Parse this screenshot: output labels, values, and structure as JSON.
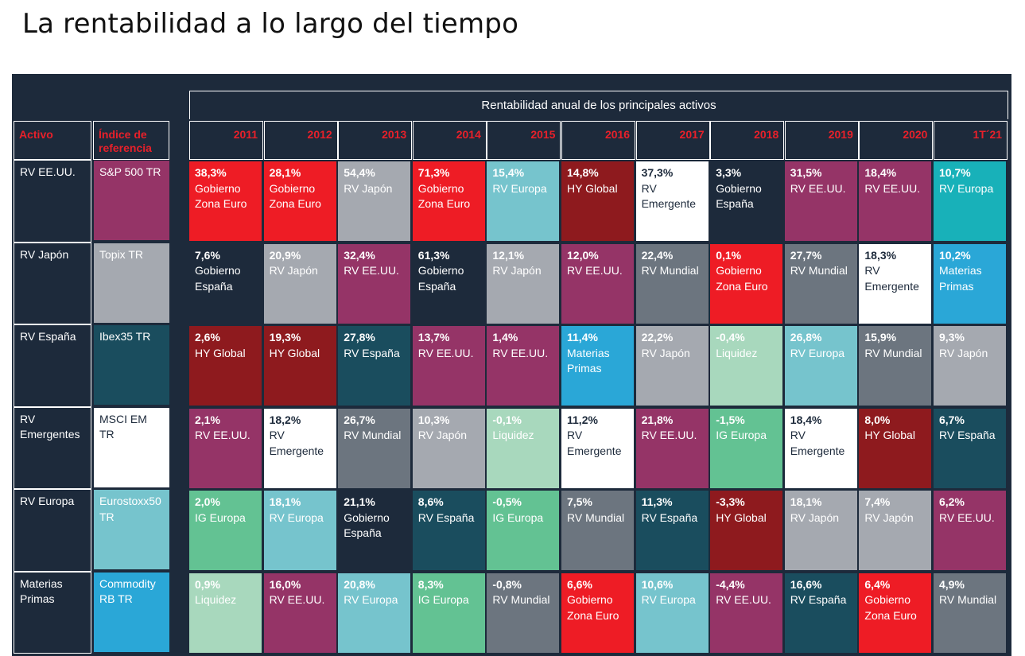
{
  "title": "La rentabilidad a lo largo del tiempo",
  "chart_data": {
    "type": "table",
    "header": "Rentabilidad anual de los principales activos",
    "col_activo": "Activo",
    "col_indice": "Índice de referencia",
    "years": [
      "2011",
      "2012",
      "2013",
      "2014",
      "2015",
      "2016",
      "2017",
      "2018",
      "2019",
      "2020",
      "1T´21"
    ],
    "assets": [
      {
        "name": "RV EE.UU.",
        "index": "S&P 500 TR",
        "color": "rv_eeuu"
      },
      {
        "name": "RV Japón",
        "index": "Topix TR",
        "color": "rv_japon"
      },
      {
        "name": "RV España",
        "index": "Ibex35 TR",
        "color": "rv_espana"
      },
      {
        "name": "RV Emergentes",
        "index": "MSCI EM TR",
        "color": "rv_emergente"
      },
      {
        "name": "RV Europa",
        "index": "Eurostoxx50 TR",
        "color": "rv_europa"
      },
      {
        "name": "Materias Primas",
        "index": "Commodity RB TR",
        "color": "materias"
      }
    ],
    "grid": [
      [
        {
          "pct": "38,3%",
          "name": "Gobierno Zona Euro",
          "color": "gob_zona"
        },
        {
          "pct": "28,1%",
          "name": "Gobierno Zona Euro",
          "color": "gob_zona"
        },
        {
          "pct": "54,4%",
          "name": "RV Japón",
          "color": "rv_japon"
        },
        {
          "pct": "71,3%",
          "name": "Gobierno Zona Euro",
          "color": "gob_zona"
        },
        {
          "pct": "15,4%",
          "name": "RV Europa",
          "color": "rv_europa"
        },
        {
          "pct": "14,8%",
          "name": "HY Global",
          "color": "hy"
        },
        {
          "pct": "37,3%",
          "name": "RV Emergente",
          "color": "rv_emergente"
        },
        {
          "pct": "3,3%",
          "name": "Gobierno España",
          "color": "gob_esp"
        },
        {
          "pct": "31,5%",
          "name": "RV EE.UU.",
          "color": "rv_eeuu"
        },
        {
          "pct": "18,4%",
          "name": "RV EE.UU.",
          "color": "rv_eeuu"
        },
        {
          "pct": "10,7%",
          "name": "RV Europa",
          "color": "rv_europa_teal"
        }
      ],
      [
        {
          "pct": "7,6%",
          "name": "Gobierno España",
          "color": "gob_esp"
        },
        {
          "pct": "20,9%",
          "name": "RV Japón",
          "color": "rv_japon"
        },
        {
          "pct": "32,4%",
          "name": "RV EE.UU.",
          "color": "rv_eeuu"
        },
        {
          "pct": "61,3%",
          "name": "Gobierno España",
          "color": "gob_esp"
        },
        {
          "pct": "12,1%",
          "name": "RV Japón",
          "color": "rv_japon"
        },
        {
          "pct": "12,0%",
          "name": "RV EE.UU.",
          "color": "rv_eeuu"
        },
        {
          "pct": "22,4%",
          "name": "RV Mundial",
          "color": "rv_mundial"
        },
        {
          "pct": "0,1%",
          "name": "Gobierno Zona Euro",
          "color": "gob_zona"
        },
        {
          "pct": "27,7%",
          "name": "RV Mundial",
          "color": "rv_mundial"
        },
        {
          "pct": "18,3%",
          "name": "RV Emergente",
          "color": "rv_emergente"
        },
        {
          "pct": "10,2%",
          "name": "Materias Primas",
          "color": "materias"
        }
      ],
      [
        {
          "pct": "2,6%",
          "name": "HY Global",
          "color": "hy"
        },
        {
          "pct": "19,3%",
          "name": "HY Global",
          "color": "hy"
        },
        {
          "pct": "27,8%",
          "name": "RV España",
          "color": "rv_espana"
        },
        {
          "pct": "13,7%",
          "name": "RV EE.UU.",
          "color": "rv_eeuu"
        },
        {
          "pct": "1,4%",
          "name": "RV EE.UU.",
          "color": "rv_eeuu"
        },
        {
          "pct": "11,4%",
          "name": "Materias Primas",
          "color": "materias"
        },
        {
          "pct": "22,2%",
          "name": "RV Japón",
          "color": "rv_japon"
        },
        {
          "pct": "-0,4%",
          "name": "Liquidez",
          "color": "liquidez"
        },
        {
          "pct": "26,8%",
          "name": "RV Europa",
          "color": "rv_europa"
        },
        {
          "pct": "15,9%",
          "name": "RV Mundial",
          "color": "rv_mundial"
        },
        {
          "pct": "9,3%",
          "name": "RV Japón",
          "color": "rv_japon"
        }
      ],
      [
        {
          "pct": "2,1%",
          "name": "RV EE.UU.",
          "color": "rv_eeuu"
        },
        {
          "pct": "18,2%",
          "name": "RV Emergente",
          "color": "rv_emergente"
        },
        {
          "pct": "26,7%",
          "name": "RV Mundial",
          "color": "rv_mundial"
        },
        {
          "pct": "10,3%",
          "name": "RV Japón",
          "color": "rv_japon"
        },
        {
          "pct": "-0,1%",
          "name": "Liquidez",
          "color": "liquidez"
        },
        {
          "pct": "11,2%",
          "name": "RV Emergente",
          "color": "rv_emergente"
        },
        {
          "pct": "21,8%",
          "name": "RV EE.UU.",
          "color": "rv_eeuu"
        },
        {
          "pct": "-1,5%",
          "name": "IG Europa",
          "color": "ig_europa"
        },
        {
          "pct": "18,4%",
          "name": "RV Emergente",
          "color": "rv_emergente"
        },
        {
          "pct": "8,0%",
          "name": "HY Global",
          "color": "hy"
        },
        {
          "pct": "6,7%",
          "name": "RV España",
          "color": "rv_espana"
        }
      ],
      [
        {
          "pct": "2,0%",
          "name": "IG Europa",
          "color": "ig_europa"
        },
        {
          "pct": "18,1%",
          "name": "RV Europa",
          "color": "rv_europa"
        },
        {
          "pct": "21,1%",
          "name": "Gobierno España",
          "color": "gob_esp"
        },
        {
          "pct": "8,6%",
          "name": "RV España",
          "color": "rv_espana"
        },
        {
          "pct": "-0,5%",
          "name": "IG Europa",
          "color": "ig_europa"
        },
        {
          "pct": "7,5%",
          "name": "RV Mundial",
          "color": "rv_mundial"
        },
        {
          "pct": "11,3%",
          "name": "RV España",
          "color": "rv_espana"
        },
        {
          "pct": "-3,3%",
          "name": "HY Global",
          "color": "hy"
        },
        {
          "pct": "18,1%",
          "name": "RV Japón",
          "color": "rv_japon"
        },
        {
          "pct": "7,4%",
          "name": "RV Japón",
          "color": "rv_japon"
        },
        {
          "pct": "6,2%",
          "name": "RV EE.UU.",
          "color": "rv_eeuu"
        }
      ],
      [
        {
          "pct": "0,9%",
          "name": "Liquidez",
          "color": "liquidez"
        },
        {
          "pct": "16,0%",
          "name": "RV EE.UU.",
          "color": "rv_eeuu"
        },
        {
          "pct": "20,8%",
          "name": "RV Europa",
          "color": "rv_europa"
        },
        {
          "pct": "8,3%",
          "name": "IG Europa",
          "color": "ig_europa"
        },
        {
          "pct": "-0,8%",
          "name": "RV Mundial",
          "color": "rv_mundial"
        },
        {
          "pct": "6,6%",
          "name": "Gobierno Zona Euro",
          "color": "gob_zona"
        },
        {
          "pct": "10,6%",
          "name": "RV Europa",
          "color": "rv_europa"
        },
        {
          "pct": "-4,4%",
          "name": "RV EE.UU.",
          "color": "rv_eeuu"
        },
        {
          "pct": "16,6%",
          "name": "RV España",
          "color": "rv_espana"
        },
        {
          "pct": "6,4%",
          "name": "Gobierno Zona Euro",
          "color": "gob_zona"
        },
        {
          "pct": "4,9%",
          "name": "RV Mundial",
          "color": "rv_mundial"
        }
      ]
    ]
  },
  "colors": {
    "gob_zona": {
      "bg": "#ee1c25",
      "fg": "#ffffff"
    },
    "gob_esp": {
      "bg": "#1d2a3b",
      "fg": "#ffffff"
    },
    "rv_japon": {
      "bg": "#a5a9b0",
      "fg": "#ffffff"
    },
    "rv_europa": {
      "bg": "#76c4cd",
      "fg": "#ffffff"
    },
    "rv_europa_teal": {
      "bg": "#18b1b9",
      "fg": "#ffffff"
    },
    "hy": {
      "bg": "#8e1a1e",
      "fg": "#ffffff"
    },
    "rv_emergente": {
      "bg": "#ffffff",
      "fg": "#1d2a3b"
    },
    "rv_eeuu": {
      "bg": "#953467",
      "fg": "#ffffff"
    },
    "rv_mundial": {
      "bg": "#6c757f",
      "fg": "#ffffff"
    },
    "rv_espana": {
      "bg": "#1a4d5e",
      "fg": "#ffffff"
    },
    "materias": {
      "bg": "#2aa7d7",
      "fg": "#ffffff"
    },
    "liquidez": {
      "bg": "#a8d8bd",
      "fg": "#ffffff"
    },
    "ig_europa": {
      "bg": "#63c293",
      "fg": "#ffffff"
    }
  }
}
